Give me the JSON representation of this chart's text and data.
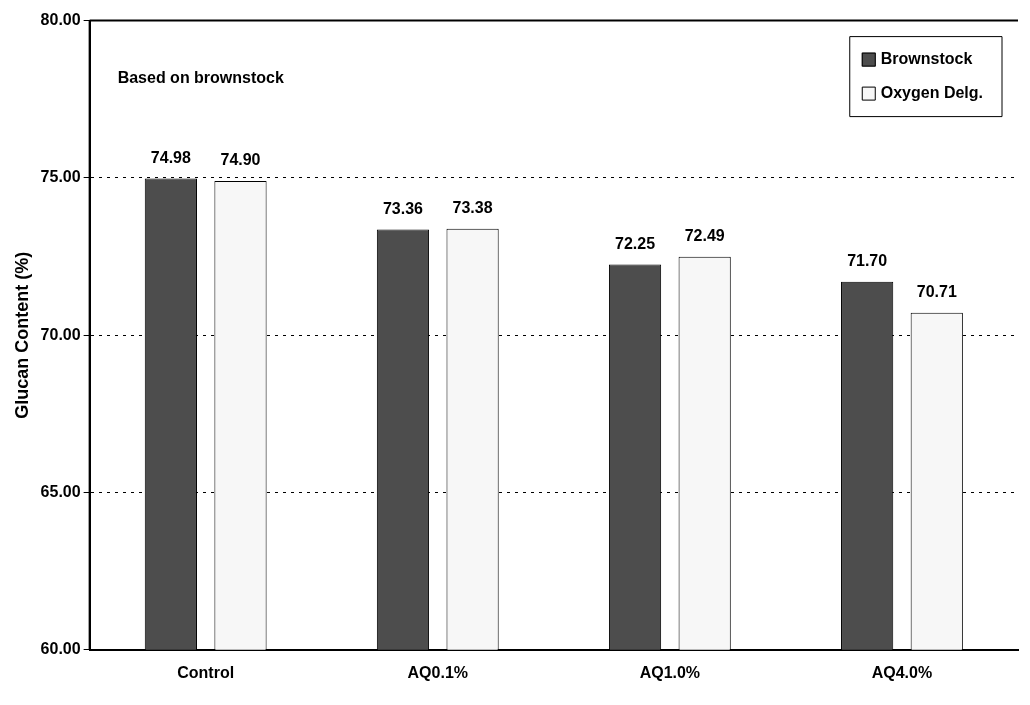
{
  "chart_data": {
    "type": "bar",
    "ylabel": "Glucan Content (%)",
    "categories": [
      "Control",
      "AQ0.1%",
      "AQ1.0%",
      "AQ4.0%"
    ],
    "series": [
      {
        "name": "Brownstock",
        "color": "#4d4d4d",
        "values": [
          74.98,
          73.36,
          72.25,
          71.7
        ],
        "value_labels": [
          "74.98",
          "73.36",
          "72.25",
          "71.70"
        ]
      },
      {
        "name": "Oxygen Delg.",
        "color": "#f7f7f7",
        "values": [
          74.9,
          73.38,
          72.49,
          70.71
        ],
        "value_labels": [
          "74.90",
          "73.38",
          "72.49",
          "70.71"
        ]
      }
    ],
    "ylim": [
      60,
      80
    ],
    "yticks": [
      {
        "value": 60,
        "label": "60.00"
      },
      {
        "value": 65,
        "label": "65.00"
      },
      {
        "value": 70,
        "label": "70.00"
      },
      {
        "value": 75,
        "label": "75.00"
      },
      {
        "value": 80,
        "label": "80.00"
      }
    ],
    "grid": "y",
    "legend": "top right",
    "annotations": [
      "Based on brownstock"
    ]
  }
}
